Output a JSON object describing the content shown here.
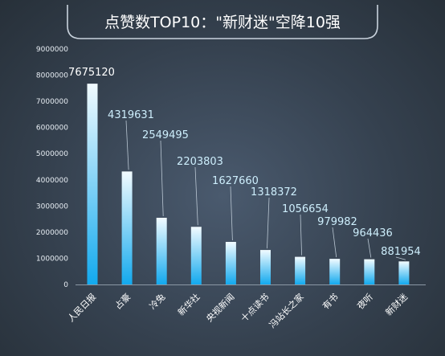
{
  "chart_data": {
    "type": "bar",
    "title": "点赞数TOP10：\"新财迷\"空降10强",
    "categories": [
      "人民日报",
      "占豪",
      "冷兔",
      "新华社",
      "央视新闻",
      "十点读书",
      "冯站长之家",
      "有书",
      "夜听",
      "新财迷"
    ],
    "values": [
      7675120,
      4319631,
      2549495,
      2203803,
      1627660,
      1318372,
      1056654,
      979982,
      964436,
      881954
    ],
    "data_labels": [
      "7675120",
      "4319631",
      "2549495",
      "2203803",
      "1627660",
      "1318372",
      "1056654",
      "979982",
      "964436",
      "881954"
    ],
    "xlabel": "",
    "ylabel": "",
    "ylim": [
      0,
      9000000
    ],
    "yticks": [
      "0",
      "1000000",
      "2000000",
      "3000000",
      "4000000",
      "5000000",
      "6000000",
      "7000000",
      "8000000",
      "9000000"
    ],
    "grid": false,
    "legend": "none",
    "colors": {
      "bar_top": "#f2fbff",
      "bar_bottom": "#12a9ee",
      "label_highlight": "#ffffff",
      "label": "#cdeefc",
      "leader_line": "#b9c6d2"
    }
  }
}
